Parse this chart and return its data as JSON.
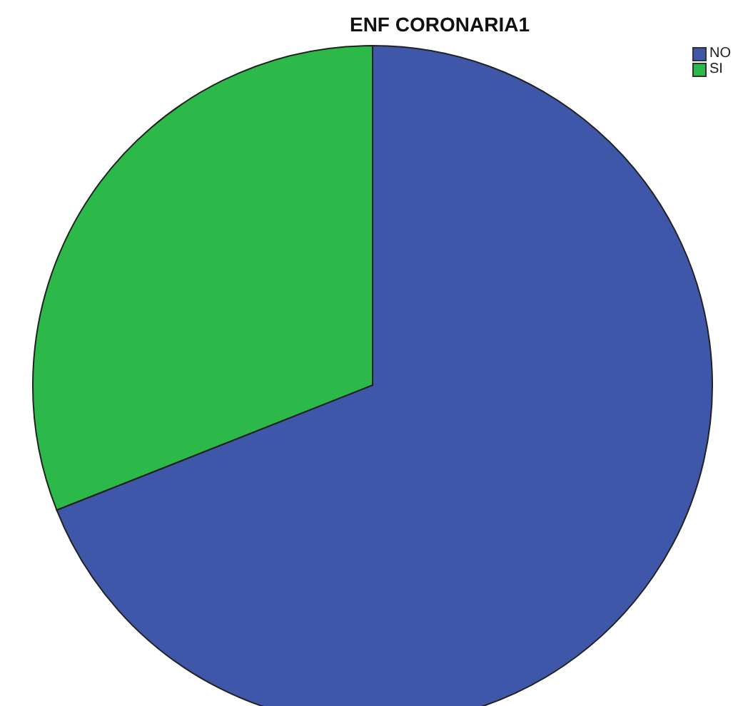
{
  "chart_data": {
    "type": "pie",
    "title": "ENF CORONARIA1",
    "categories": [
      "NO",
      "SI"
    ],
    "values": [
      69,
      31
    ],
    "colors": [
      "#3f57a9",
      "#2db84a"
    ],
    "legend": "top right"
  }
}
